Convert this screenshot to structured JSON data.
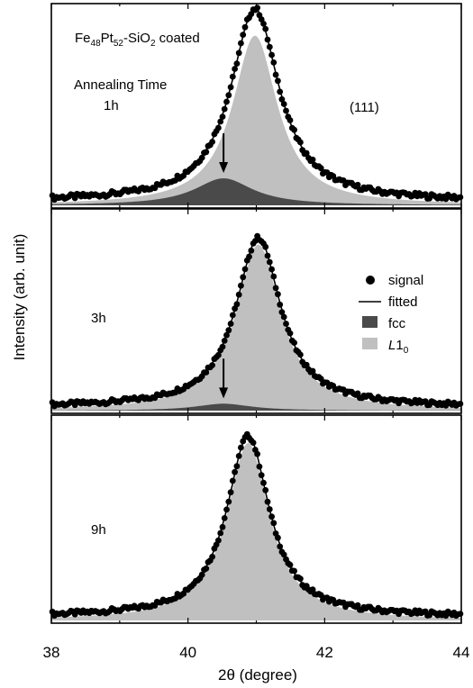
{
  "chart_data": {
    "type": "area",
    "y_axis_label": "Intensity (arb. unit)",
    "x_axis": {
      "label": "2θ (degree)",
      "range": [
        38,
        44
      ],
      "ticks": [
        38,
        40,
        42,
        44
      ],
      "minor_ticks": [
        39,
        41,
        43
      ]
    },
    "sample_label": {
      "base1": "Fe",
      "sub1": "48",
      "base2": "Pt",
      "sub2": "52",
      "base3": "-SiO",
      "sub3": "2",
      "rest": " coated"
    },
    "annealing_label": "Annealing Time",
    "peak_label": "(111)",
    "colors": {
      "signal": "#000000",
      "fitted": "#000000",
      "fcc": "#4a4a4a",
      "L10": "#c0c0c0"
    },
    "legend": {
      "placement": "middle-panel right",
      "items": [
        {
          "key": "signal",
          "label": "signal",
          "marker": "circle"
        },
        {
          "key": "fitted",
          "label": "fitted",
          "marker": "line"
        },
        {
          "key": "fcc",
          "label": "fcc",
          "marker": "square"
        },
        {
          "key": "L10",
          "label_italic": "L",
          "label_rest": "1",
          "label_sub": "0",
          "marker": "square"
        }
      ]
    },
    "panels": [
      {
        "time_label": "1h",
        "baseline": 0.02,
        "fitted": {
          "center": 40.98,
          "peak": 1.0,
          "hwhm": 0.43
        },
        "L10": {
          "center": 40.98,
          "peak": 0.88,
          "hwhm": 0.4
        },
        "fcc": {
          "center": 40.52,
          "peak": 0.14,
          "hwhm": 0.52
        },
        "arrow_x": 40.52
      },
      {
        "time_label": "3h",
        "baseline": 0.02,
        "fitted": {
          "center": 41.03,
          "peak": 0.98,
          "hwhm": 0.4
        },
        "L10": {
          "center": 41.03,
          "peak": 0.96,
          "hwhm": 0.4
        },
        "fcc": {
          "center": 40.52,
          "peak": 0.04,
          "hwhm": 0.5
        },
        "arrow_x": 40.52
      },
      {
        "time_label": "9h",
        "baseline": 0.02,
        "fitted": {
          "center": 40.88,
          "peak": 1.0,
          "hwhm": 0.38
        },
        "L10": {
          "center": 40.88,
          "peak": 0.98,
          "hwhm": 0.38
        },
        "fcc": null,
        "arrow_x": null
      }
    ]
  }
}
